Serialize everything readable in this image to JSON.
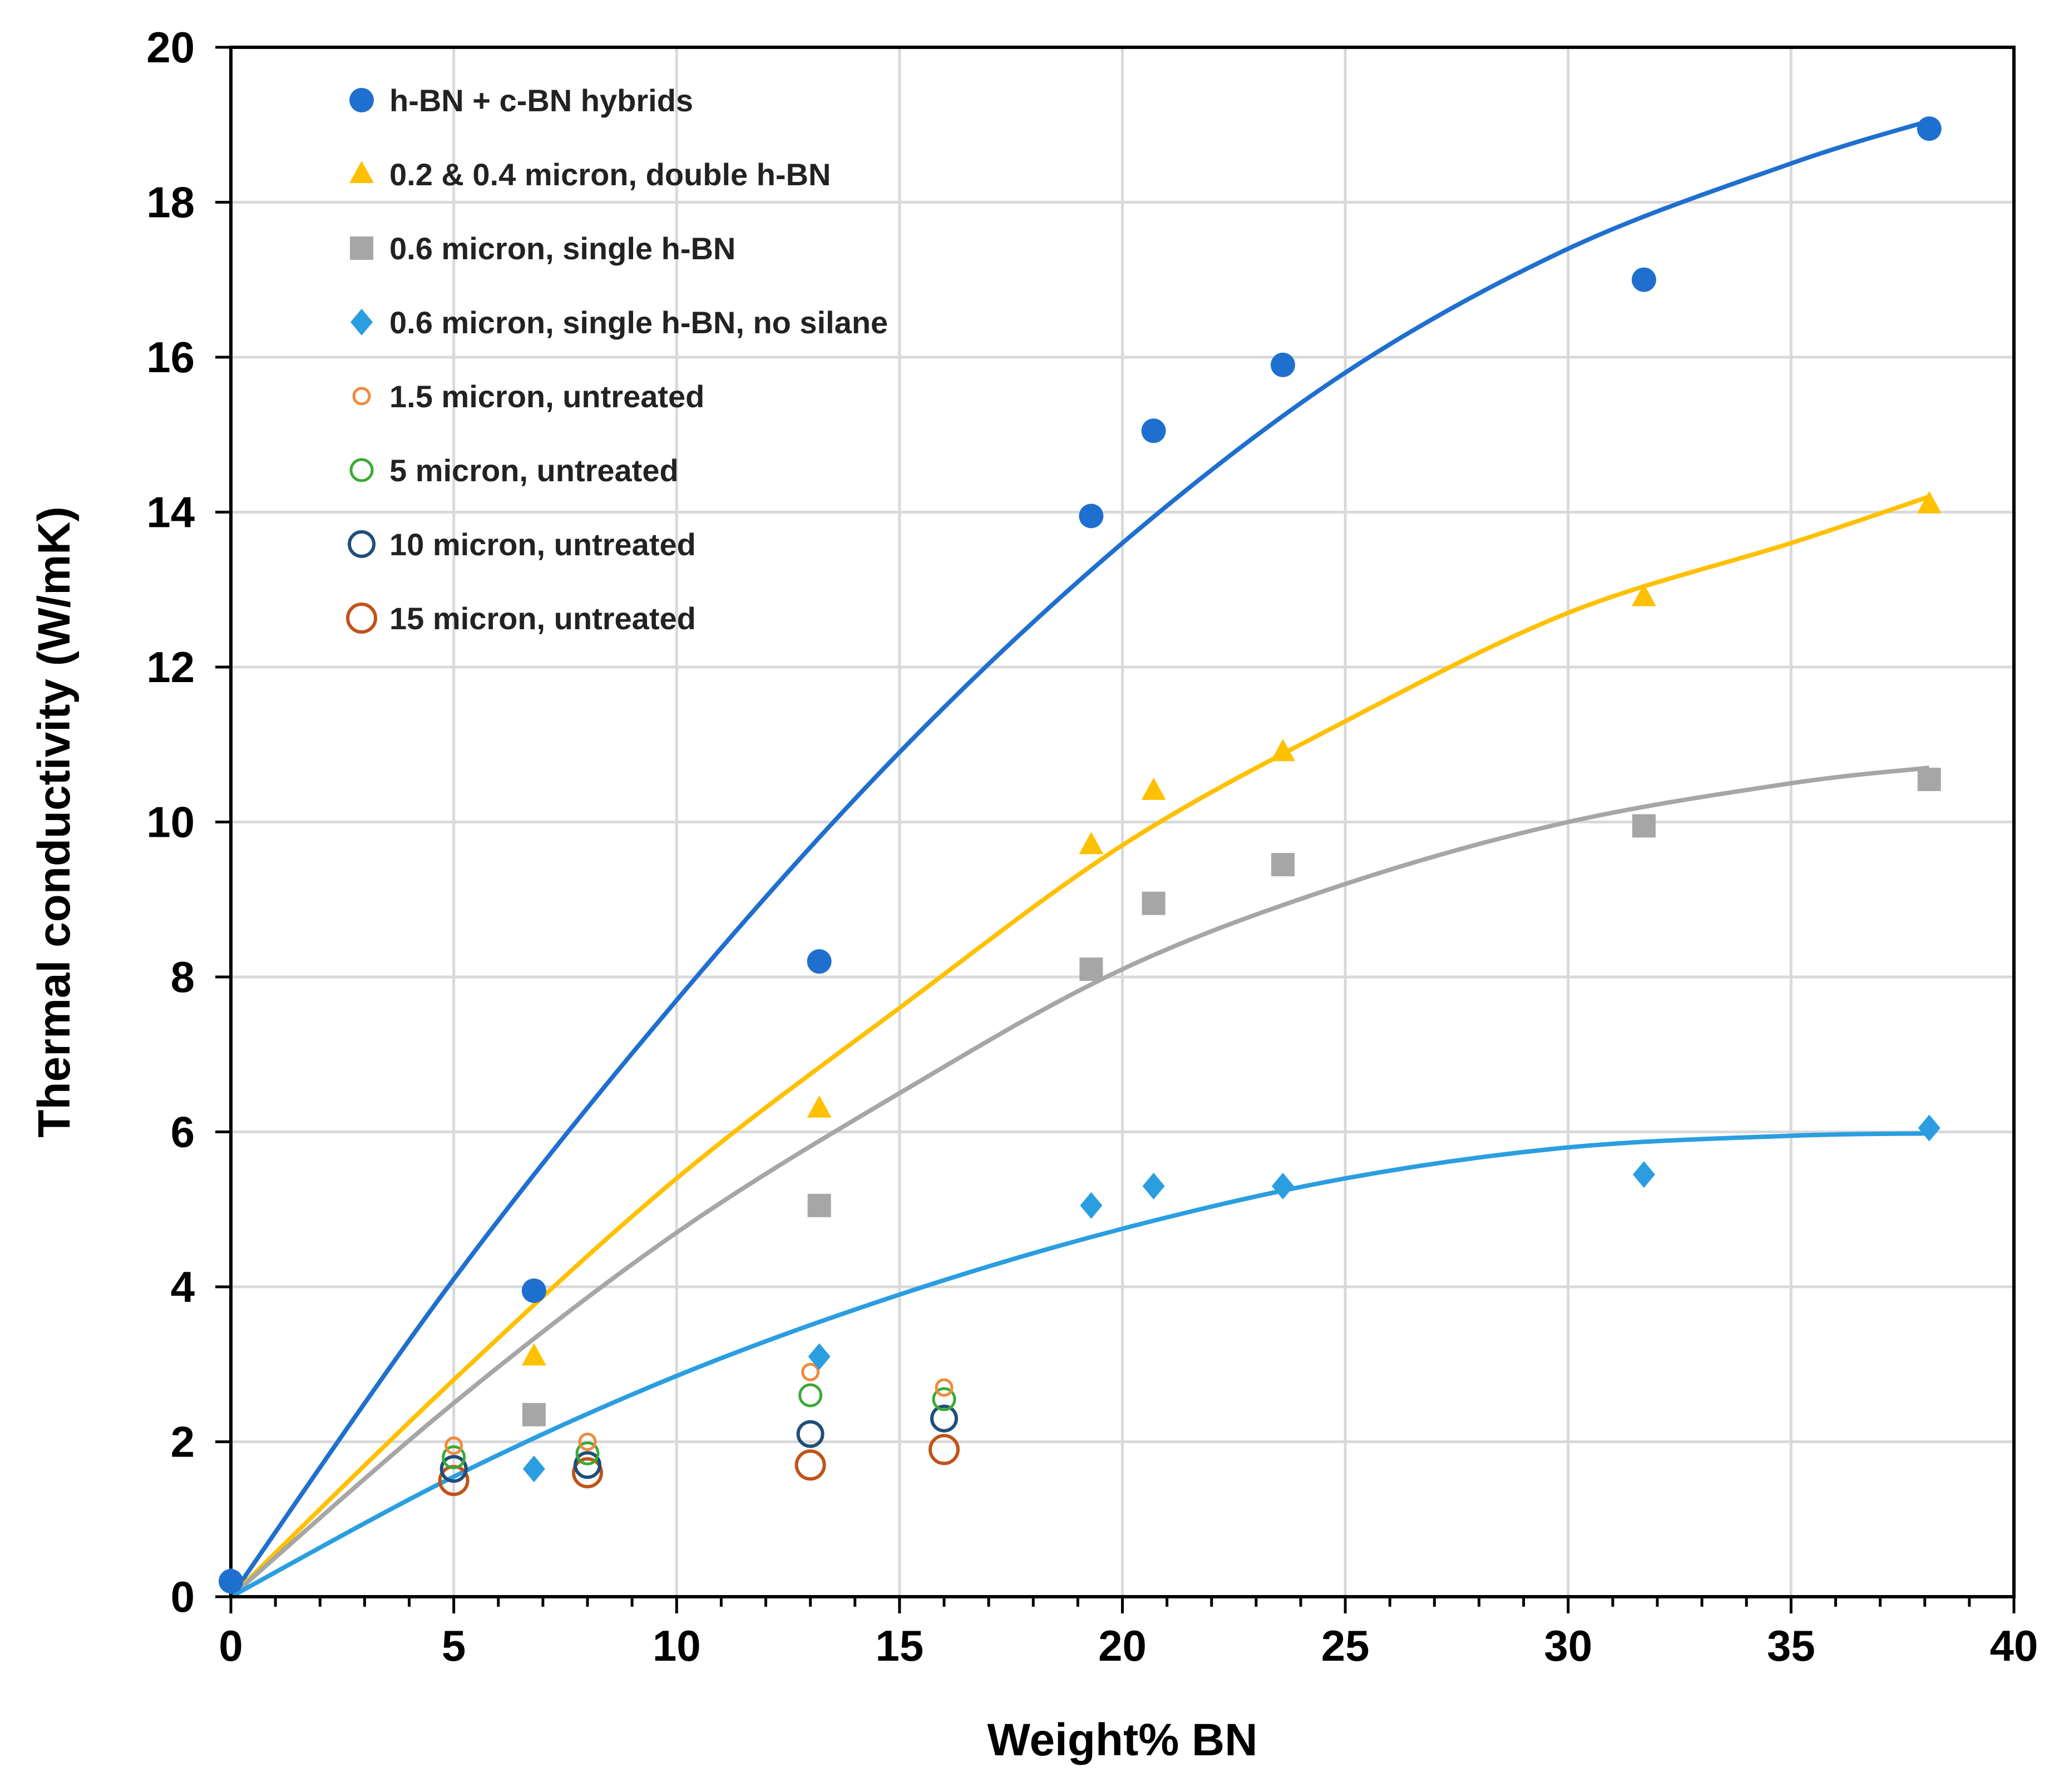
{
  "chart_data": {
    "type": "scatter",
    "title": "",
    "xlabel": "Weight% BN",
    "ylabel": "Thermal conductivity (W/mK)",
    "xlim": [
      0,
      40
    ],
    "ylim": [
      0,
      20
    ],
    "xticks": [
      0,
      5,
      10,
      15,
      20,
      25,
      30,
      35,
      40
    ],
    "yticks": [
      0,
      2,
      4,
      6,
      8,
      10,
      12,
      14,
      16,
      18,
      20
    ],
    "grid": true,
    "legend_position": "top-left",
    "series": [
      {
        "name": "h-BN + c-BN hybrids",
        "marker": "filled-circle",
        "color": "#1f6fcf",
        "x": [
          0,
          6.8,
          13.2,
          19.3,
          20.7,
          23.6,
          31.7,
          38.1
        ],
        "y": [
          0.2,
          3.95,
          8.2,
          13.95,
          15.05,
          15.9,
          17.0,
          18.95
        ],
        "trendline": {
          "x": [
            0,
            5,
            10,
            15,
            20,
            25,
            30,
            35,
            38.1
          ],
          "y": [
            0,
            4.1,
            7.7,
            10.9,
            13.6,
            15.8,
            17.4,
            18.5,
            19.05
          ]
        }
      },
      {
        "name": "0.2 & 0.4 micron, double h-BN",
        "marker": "filled-triangle",
        "color": "#ffc000",
        "x": [
          6.8,
          13.2,
          19.3,
          20.7,
          23.6,
          31.7,
          38.1
        ],
        "y": [
          3.1,
          6.3,
          9.7,
          10.4,
          10.9,
          12.9,
          14.1
        ],
        "trendline": {
          "x": [
            0,
            5,
            10,
            15,
            20,
            25,
            30,
            35,
            38.1
          ],
          "y": [
            0,
            2.8,
            5.4,
            7.6,
            9.7,
            11.3,
            12.7,
            13.6,
            14.2
          ]
        }
      },
      {
        "name": "0.6 micron, single h-BN",
        "marker": "filled-square",
        "color": "#a6a6a6",
        "x": [
          6.8,
          13.2,
          19.3,
          20.7,
          23.6,
          31.7,
          38.1
        ],
        "y": [
          2.35,
          5.05,
          8.1,
          8.95,
          9.45,
          9.95,
          10.55
        ],
        "trendline": {
          "x": [
            0,
            5,
            10,
            15,
            20,
            25,
            30,
            35,
            38.1
          ],
          "y": [
            0,
            2.5,
            4.7,
            6.5,
            8.1,
            9.2,
            10.0,
            10.5,
            10.7
          ]
        }
      },
      {
        "name": "0.6 micron, single h-BN, no silane",
        "marker": "filled-diamond",
        "color": "#2a9ee0",
        "x": [
          0,
          6.8,
          13.2,
          19.3,
          20.7,
          23.6,
          31.7,
          38.1
        ],
        "y": [
          0.2,
          1.65,
          3.1,
          5.05,
          5.3,
          5.3,
          5.45,
          6.05
        ],
        "trendline": {
          "x": [
            0,
            5,
            10,
            15,
            20,
            25,
            30,
            35,
            38.1
          ],
          "y": [
            0,
            1.55,
            2.85,
            3.9,
            4.75,
            5.4,
            5.8,
            5.95,
            5.98
          ]
        }
      },
      {
        "name": "1.5 micron, untreated",
        "marker": "open-circle-small",
        "color": "#f08a3c",
        "x": [
          5,
          8,
          13,
          16
        ],
        "y": [
          1.95,
          2.0,
          2.9,
          2.7
        ]
      },
      {
        "name": "5 micron, untreated",
        "marker": "open-circle-medium",
        "color": "#3aaa35",
        "x": [
          5,
          8,
          13,
          16
        ],
        "y": [
          1.8,
          1.85,
          2.6,
          2.55
        ]
      },
      {
        "name": "10  micron, untreated",
        "marker": "open-circle-large",
        "color": "#1f4e79",
        "x": [
          5,
          8,
          13,
          16
        ],
        "y": [
          1.65,
          1.7,
          2.1,
          2.3
        ]
      },
      {
        "name": "15 micron, untreated",
        "marker": "open-circle-xlarge",
        "color": "#c0531a",
        "x": [
          5,
          8,
          13,
          16
        ],
        "y": [
          1.5,
          1.6,
          1.7,
          1.9
        ]
      }
    ]
  }
}
